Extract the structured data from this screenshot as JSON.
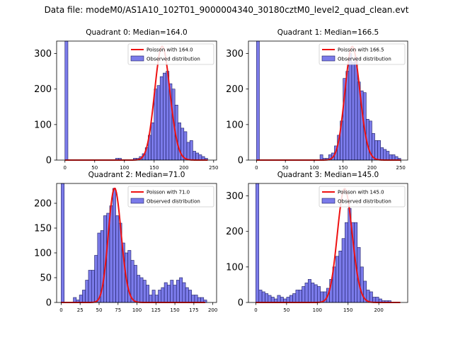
{
  "figure_title": "Data file: modeM0/AS1A10_102T01_9000004340_30180cztM0_level2_quad_clean.evt",
  "colors": {
    "bars": "#7b7bea",
    "bar_edge": "#1a1a60",
    "poisson": "#ee1111",
    "axis": "#000000"
  },
  "chart_data": [
    {
      "type": "bar",
      "title": "Quadrant 0: Median=164.0",
      "legend": [
        "Poisson with 164.0",
        "Observed distribution"
      ],
      "legend_position": "top-right",
      "xlim": [
        -14,
        255
      ],
      "ylim": [
        0,
        335
      ],
      "xticks": [
        0,
        50,
        100,
        150,
        200,
        250
      ],
      "yticks": [
        0,
        100,
        200,
        300
      ],
      "bin_width": 5,
      "bins": [
        [
          0,
          335
        ],
        [
          85,
          5
        ],
        [
          90,
          5
        ],
        [
          115,
          5
        ],
        [
          120,
          5
        ],
        [
          125,
          10
        ],
        [
          130,
          18
        ],
        [
          135,
          35
        ],
        [
          140,
          70
        ],
        [
          145,
          105
        ],
        [
          150,
          200
        ],
        [
          155,
          210
        ],
        [
          160,
          235
        ],
        [
          165,
          245
        ],
        [
          170,
          250
        ],
        [
          175,
          215
        ],
        [
          180,
          200
        ],
        [
          185,
          155
        ],
        [
          190,
          105
        ],
        [
          195,
          90
        ],
        [
          200,
          80
        ],
        [
          205,
          50
        ],
        [
          210,
          55
        ],
        [
          215,
          25
        ],
        [
          220,
          20
        ],
        [
          225,
          15
        ],
        [
          230,
          10
        ],
        [
          235,
          5
        ]
      ],
      "poisson": {
        "lambda": 164.0,
        "peak": 320,
        "x_start": 0,
        "x_end": 240
      }
    },
    {
      "type": "bar",
      "title": "Quadrant 1: Median=166.5",
      "legend": [
        "Poisson with 166.5",
        "Observed distribution"
      ],
      "legend_position": "top-right",
      "xlim": [
        -14,
        262
      ],
      "ylim": [
        0,
        335
      ],
      "xticks": [
        0,
        50,
        100,
        150,
        200,
        250
      ],
      "yticks": [
        0,
        100,
        200,
        300
      ],
      "bin_width": 5,
      "bins": [
        [
          0,
          335
        ],
        [
          110,
          15
        ],
        [
          115,
          5
        ],
        [
          120,
          5
        ],
        [
          125,
          15
        ],
        [
          130,
          20
        ],
        [
          135,
          40
        ],
        [
          140,
          70
        ],
        [
          145,
          110
        ],
        [
          150,
          230
        ],
        [
          155,
          250
        ],
        [
          160,
          300
        ],
        [
          165,
          275
        ],
        [
          170,
          290
        ],
        [
          175,
          220
        ],
        [
          180,
          195
        ],
        [
          185,
          190
        ],
        [
          190,
          115
        ],
        [
          195,
          110
        ],
        [
          200,
          75
        ],
        [
          205,
          55
        ],
        [
          210,
          55
        ],
        [
          215,
          35
        ],
        [
          220,
          30
        ],
        [
          225,
          25
        ],
        [
          230,
          15
        ],
        [
          235,
          15
        ],
        [
          240,
          10
        ],
        [
          245,
          5
        ]
      ],
      "poisson": {
        "lambda": 166.5,
        "peak": 320,
        "x_start": 0,
        "x_end": 250
      }
    },
    {
      "type": "bar",
      "title": "Quadrant 2: Median=71.0",
      "legend": [
        "Poisson with 71.0",
        "Observed distribution"
      ],
      "legend_position": "top-right",
      "xlim": [
        -6,
        205
      ],
      "ylim": [
        0,
        240
      ],
      "xticks": [
        0,
        25,
        50,
        75,
        100,
        125,
        150,
        175,
        200
      ],
      "yticks": [
        0,
        50,
        100,
        150,
        200
      ],
      "bin_width": 4,
      "bins": [
        [
          0,
          240
        ],
        [
          16,
          10
        ],
        [
          20,
          5
        ],
        [
          24,
          15
        ],
        [
          28,
          25
        ],
        [
          32,
          45
        ],
        [
          36,
          65
        ],
        [
          40,
          65
        ],
        [
          44,
          95
        ],
        [
          48,
          140
        ],
        [
          52,
          145
        ],
        [
          56,
          175
        ],
        [
          60,
          180
        ],
        [
          64,
          195
        ],
        [
          68,
          230
        ],
        [
          72,
          175
        ],
        [
          76,
          160
        ],
        [
          80,
          120
        ],
        [
          84,
          100
        ],
        [
          88,
          105
        ],
        [
          92,
          85
        ],
        [
          96,
          75
        ],
        [
          100,
          55
        ],
        [
          104,
          50
        ],
        [
          108,
          45
        ],
        [
          112,
          35
        ],
        [
          116,
          15
        ],
        [
          120,
          25
        ],
        [
          124,
          15
        ],
        [
          128,
          25
        ],
        [
          132,
          30
        ],
        [
          136,
          40
        ],
        [
          140,
          35
        ],
        [
          144,
          45
        ],
        [
          148,
          35
        ],
        [
          152,
          45
        ],
        [
          156,
          50
        ],
        [
          160,
          40
        ],
        [
          164,
          30
        ],
        [
          168,
          25
        ],
        [
          172,
          15
        ],
        [
          176,
          15
        ],
        [
          180,
          10
        ],
        [
          184,
          10
        ],
        [
          188,
          5
        ]
      ],
      "poisson": {
        "lambda": 71.0,
        "peak": 230,
        "x_start": 0,
        "x_end": 190
      }
    },
    {
      "type": "bar",
      "title": "Quadrant 3: Median=145.0",
      "legend": [
        "Poisson with 145.0",
        "Observed distribution"
      ],
      "legend_position": "top-right",
      "xlim": [
        -12,
        247
      ],
      "ylim": [
        0,
        335
      ],
      "xticks": [
        0,
        50,
        100,
        150,
        200
      ],
      "yticks": [
        0,
        100,
        200,
        300
      ],
      "bin_width": 5,
      "bins": [
        [
          0,
          335
        ],
        [
          5,
          35
        ],
        [
          10,
          30
        ],
        [
          15,
          25
        ],
        [
          20,
          20
        ],
        [
          25,
          15
        ],
        [
          30,
          10
        ],
        [
          35,
          20
        ],
        [
          40,
          15
        ],
        [
          45,
          10
        ],
        [
          50,
          15
        ],
        [
          55,
          20
        ],
        [
          60,
          25
        ],
        [
          65,
          35
        ],
        [
          70,
          35
        ],
        [
          75,
          45
        ],
        [
          80,
          55
        ],
        [
          85,
          65
        ],
        [
          90,
          55
        ],
        [
          95,
          50
        ],
        [
          100,
          45
        ],
        [
          105,
          30
        ],
        [
          110,
          30
        ],
        [
          115,
          40
        ],
        [
          120,
          65
        ],
        [
          125,
          100
        ],
        [
          130,
          130
        ],
        [
          135,
          145
        ],
        [
          140,
          180
        ],
        [
          145,
          225
        ],
        [
          150,
          265
        ],
        [
          155,
          225
        ],
        [
          160,
          225
        ],
        [
          165,
          155
        ],
        [
          170,
          100
        ],
        [
          175,
          60
        ],
        [
          180,
          35
        ],
        [
          185,
          30
        ],
        [
          190,
          15
        ],
        [
          195,
          15
        ],
        [
          200,
          10
        ],
        [
          205,
          5
        ],
        [
          210,
          5
        ],
        [
          215,
          5
        ]
      ],
      "poisson": {
        "lambda": 145.0,
        "peak": 320,
        "x_start": 0,
        "x_end": 235
      }
    }
  ]
}
